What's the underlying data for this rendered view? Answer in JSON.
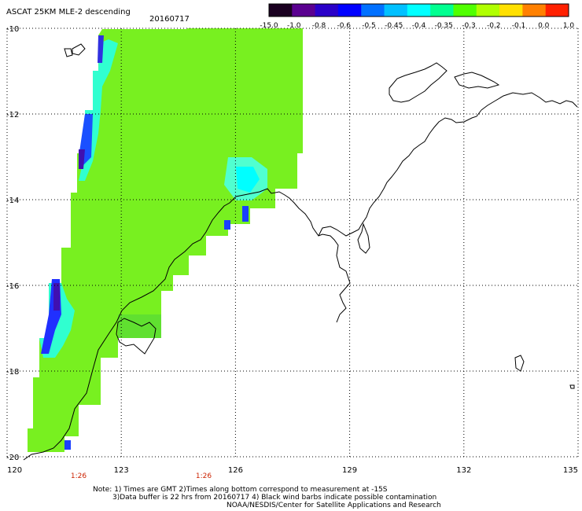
{
  "title": "ASCAT 25KM MLE-2 descending",
  "date": "20160717",
  "colorbar": {
    "labels": [
      "-15.0",
      "-1.0",
      "-0.8",
      "-0.6",
      "-0.5",
      "-0.45",
      "-0.4",
      "-0.35",
      "-0.3",
      "-0.2",
      "-0.1",
      "0.0",
      "1.0"
    ],
    "colors": [
      "#1a0020",
      "#5a0090",
      "#2a00c8",
      "#0000ff",
      "#0070ff",
      "#00c0ff",
      "#00ffff",
      "#00ff90",
      "#50ff00",
      "#b0ff00",
      "#ffe000",
      "#ff8000",
      "#ff2000"
    ]
  },
  "axes": {
    "lat_labels": [
      "-10",
      "-12",
      "-14",
      "-16",
      "-18",
      "-20"
    ],
    "lon_labels": [
      "120",
      "123",
      "126",
      "129",
      "132",
      "135"
    ]
  },
  "times": [
    "1:26",
    "1:26"
  ],
  "notes": [
    "Note: 1) Times are GMT 2)Times along bottom correspond to measurement at -15S",
    "3)Data buffer is 22 hrs from 20160717 4) Black wind barbs indicate possible contamination",
    "NOAA/NESDIS/Center for Satellite Applications and Research"
  ]
}
